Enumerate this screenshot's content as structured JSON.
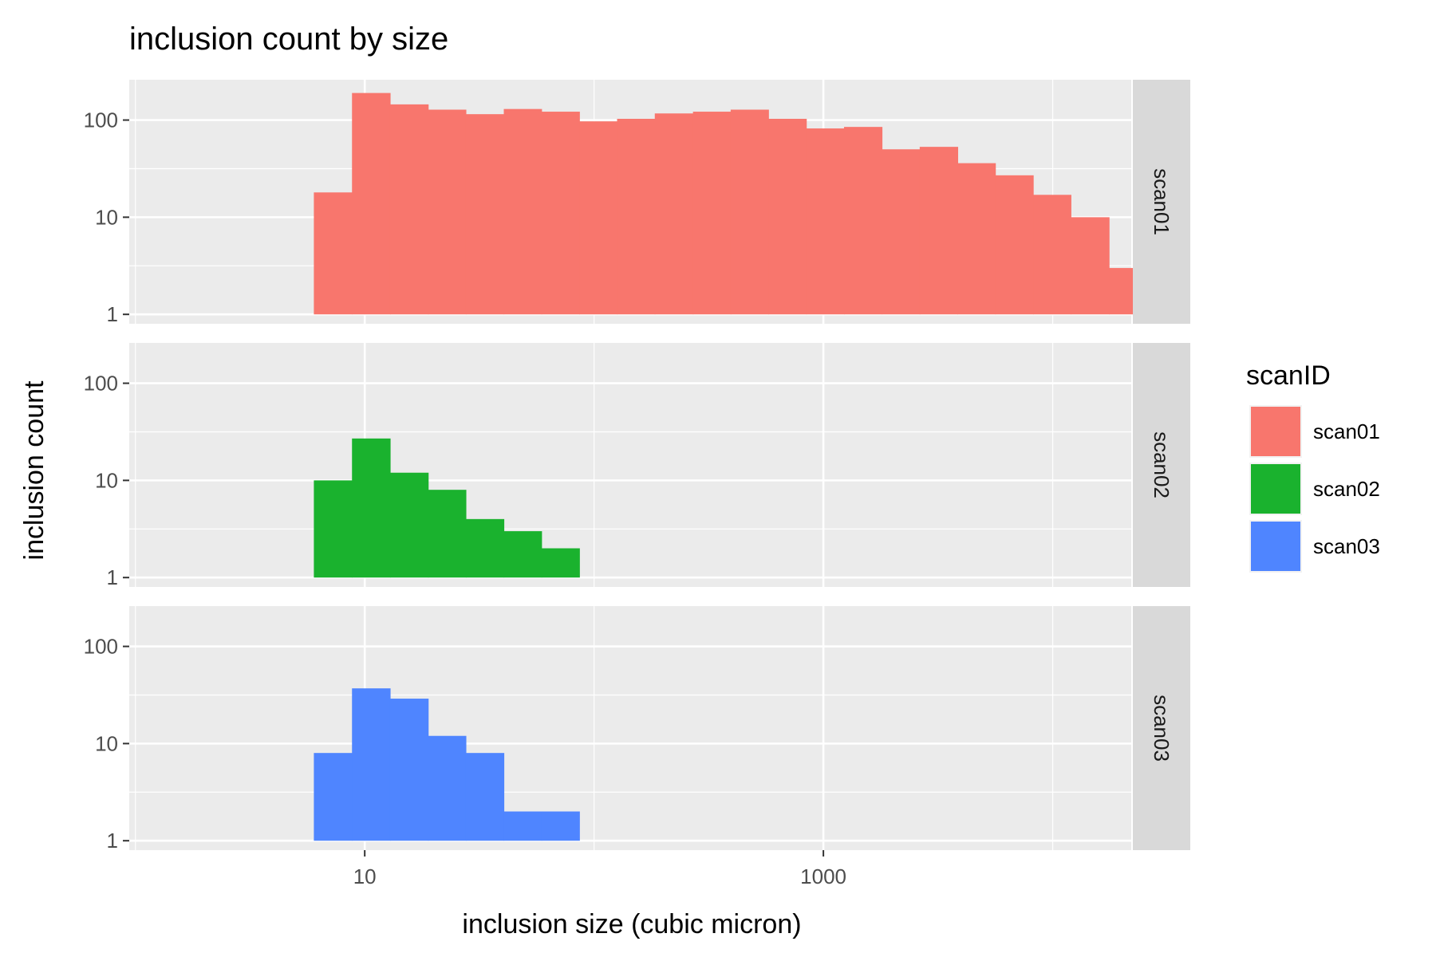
{
  "chart_data": {
    "type": "bar",
    "title": "inclusion count by size",
    "xlabel": "inclusion size (cubic micron)",
    "ylabel": "inclusion count",
    "x_scale": "log10",
    "y_scale": "log10",
    "xlim": [
      0.94,
      22000
    ],
    "ylim": [
      0.8,
      260
    ],
    "x_ticks": [
      {
        "value": 10,
        "label": "10"
      },
      {
        "value": 1000,
        "label": "1000"
      }
    ],
    "y_ticks": [
      {
        "value": 1,
        "label": "1"
      },
      {
        "value": 10,
        "label": "10"
      },
      {
        "value": 100,
        "label": "100"
      }
    ],
    "facet_variable": "scanID",
    "legend_title": "scanID",
    "legend_position": "right",
    "grid": true,
    "series": [
      {
        "name": "scan01",
        "color": "#F8766D",
        "bins": [
          {
            "x_start": 6.0,
            "x_end": 8.8,
            "count": 18
          },
          {
            "x_start": 8.8,
            "x_end": 12.9,
            "count": 190
          },
          {
            "x_start": 12.9,
            "x_end": 18.9,
            "count": 145
          },
          {
            "x_start": 18.9,
            "x_end": 27.6,
            "count": 128
          },
          {
            "x_start": 27.6,
            "x_end": 40.4,
            "count": 115
          },
          {
            "x_start": 40.4,
            "x_end": 59.0,
            "count": 130
          },
          {
            "x_start": 59.0,
            "x_end": 86.3,
            "count": 122
          },
          {
            "x_start": 86.3,
            "x_end": 126,
            "count": 97
          },
          {
            "x_start": 126,
            "x_end": 184,
            "count": 103
          },
          {
            "x_start": 184,
            "x_end": 270,
            "count": 117
          },
          {
            "x_start": 270,
            "x_end": 394,
            "count": 122
          },
          {
            "x_start": 394,
            "x_end": 576,
            "count": 128
          },
          {
            "x_start": 576,
            "x_end": 842,
            "count": 103
          },
          {
            "x_start": 842,
            "x_end": 1230,
            "count": 82
          },
          {
            "x_start": 1230,
            "x_end": 1800,
            "count": 85
          },
          {
            "x_start": 1800,
            "x_end": 2630,
            "count": 50
          },
          {
            "x_start": 2630,
            "x_end": 3850,
            "count": 53
          },
          {
            "x_start": 3850,
            "x_end": 5620,
            "count": 36
          },
          {
            "x_start": 5620,
            "x_end": 8220,
            "count": 27
          },
          {
            "x_start": 8220,
            "x_end": 12000,
            "count": 17
          },
          {
            "x_start": 12000,
            "x_end": 17600,
            "count": 10
          },
          {
            "x_start": 17600,
            "x_end": 25700,
            "count": 3
          }
        ]
      },
      {
        "name": "scan02",
        "color": "#1AB22E",
        "bins": [
          {
            "x_start": 6.0,
            "x_end": 8.8,
            "count": 10
          },
          {
            "x_start": 8.8,
            "x_end": 12.9,
            "count": 27
          },
          {
            "x_start": 12.9,
            "x_end": 18.9,
            "count": 12
          },
          {
            "x_start": 18.9,
            "x_end": 27.6,
            "count": 8
          },
          {
            "x_start": 27.6,
            "x_end": 40.4,
            "count": 4
          },
          {
            "x_start": 40.4,
            "x_end": 59.0,
            "count": 3
          },
          {
            "x_start": 59.0,
            "x_end": 86.3,
            "count": 2
          }
        ]
      },
      {
        "name": "scan03",
        "color": "#4F85FF",
        "bins": [
          {
            "x_start": 6.0,
            "x_end": 8.8,
            "count": 8
          },
          {
            "x_start": 8.8,
            "x_end": 12.9,
            "count": 37
          },
          {
            "x_start": 12.9,
            "x_end": 18.9,
            "count": 29
          },
          {
            "x_start": 18.9,
            "x_end": 27.6,
            "count": 12
          },
          {
            "x_start": 27.6,
            "x_end": 40.4,
            "count": 8
          },
          {
            "x_start": 40.4,
            "x_end": 59.0,
            "count": 2
          },
          {
            "x_start": 59.0,
            "x_end": 86.3,
            "count": 2
          }
        ]
      }
    ]
  }
}
